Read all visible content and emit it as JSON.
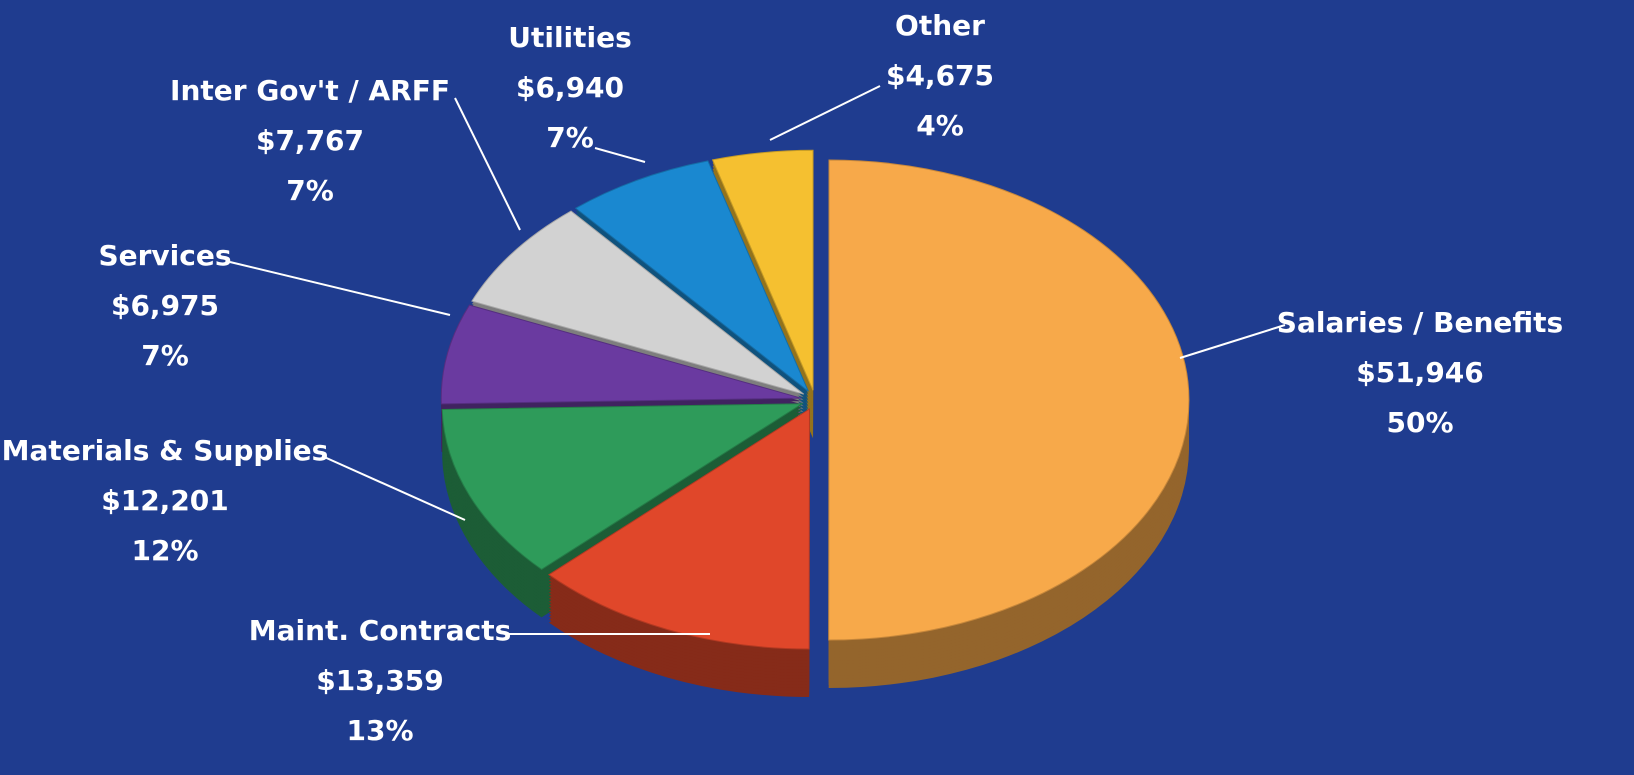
{
  "chart_data": {
    "type": "pie",
    "categories": [
      "Salaries / Benefits",
      "Maint. Contracts",
      "Materials & Supplies",
      "Services",
      "Inter Gov't / ARFF",
      "Utilities",
      "Other"
    ],
    "values": [
      51946,
      13359,
      12201,
      6975,
      7767,
      6940,
      4675
    ],
    "value_labels": [
      "$51,946",
      "$13,359",
      "$12,201",
      "$6,975",
      "$7,767",
      "$6,940",
      "$4,675"
    ],
    "percent_labels": [
      "50%",
      "13%",
      "12%",
      "7%",
      "7%",
      "7%",
      "4%"
    ],
    "colors": [
      "#f7a94a",
      "#e0472a",
      "#2e9b5a",
      "#6a3aa0",
      "#d2d2d2",
      "#1a88d0",
      "#f5c030"
    ]
  }
}
